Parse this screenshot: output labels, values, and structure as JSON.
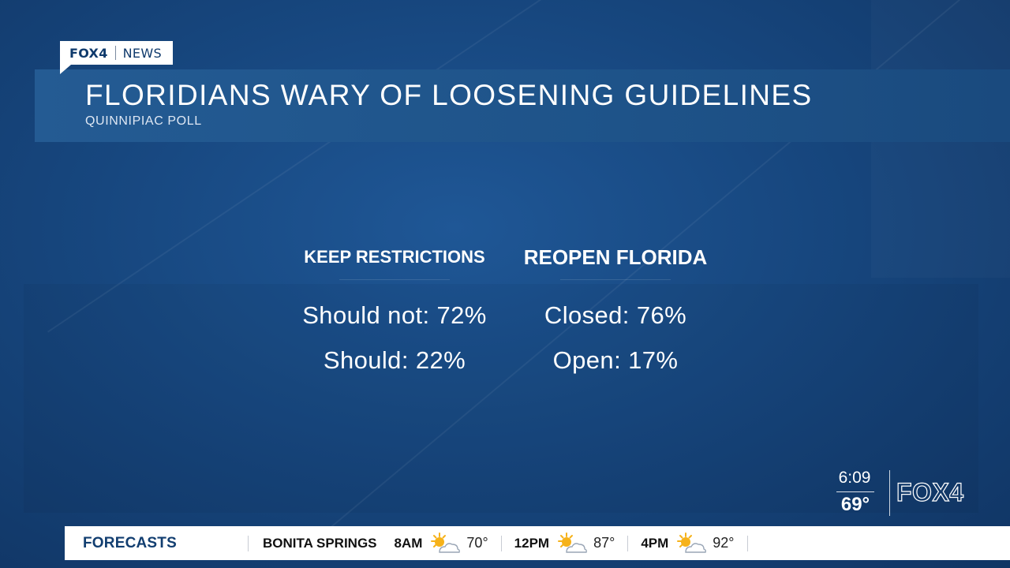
{
  "tag": {
    "brand": "FOX4",
    "section": "NEWS"
  },
  "header": {
    "title": "FLORIDIANS WARY OF LOOSENING GUIDELINES",
    "subtitle": "QUINNIPIAC POLL"
  },
  "poll": {
    "columns": [
      {
        "heading": "KEEP RESTRICTIONS",
        "rows": [
          "Should not: 72%",
          "Should: 22%"
        ]
      },
      {
        "heading": "REOPEN FLORIDA",
        "rows": [
          "Closed: 76%",
          "Open: 17%"
        ]
      }
    ]
  },
  "status": {
    "time": "6:09",
    "temperature": "69°",
    "logo_text": "FOX4"
  },
  "ticker": {
    "label": "FORECASTS",
    "location": "BONITA SPRINGS",
    "items": [
      {
        "time": "8AM",
        "icon": "partly-sunny-icon",
        "temp": "70°"
      },
      {
        "time": "12PM",
        "icon": "partly-sunny-icon",
        "temp": "87°"
      },
      {
        "time": "4PM",
        "icon": "partly-sunny-icon",
        "temp": "92°"
      }
    ]
  },
  "colors": {
    "background": "#17477f",
    "header": "#1e5389",
    "brand_dark": "#0f3a6c",
    "text": "#ffffff",
    "sun": "#f6b21a"
  }
}
